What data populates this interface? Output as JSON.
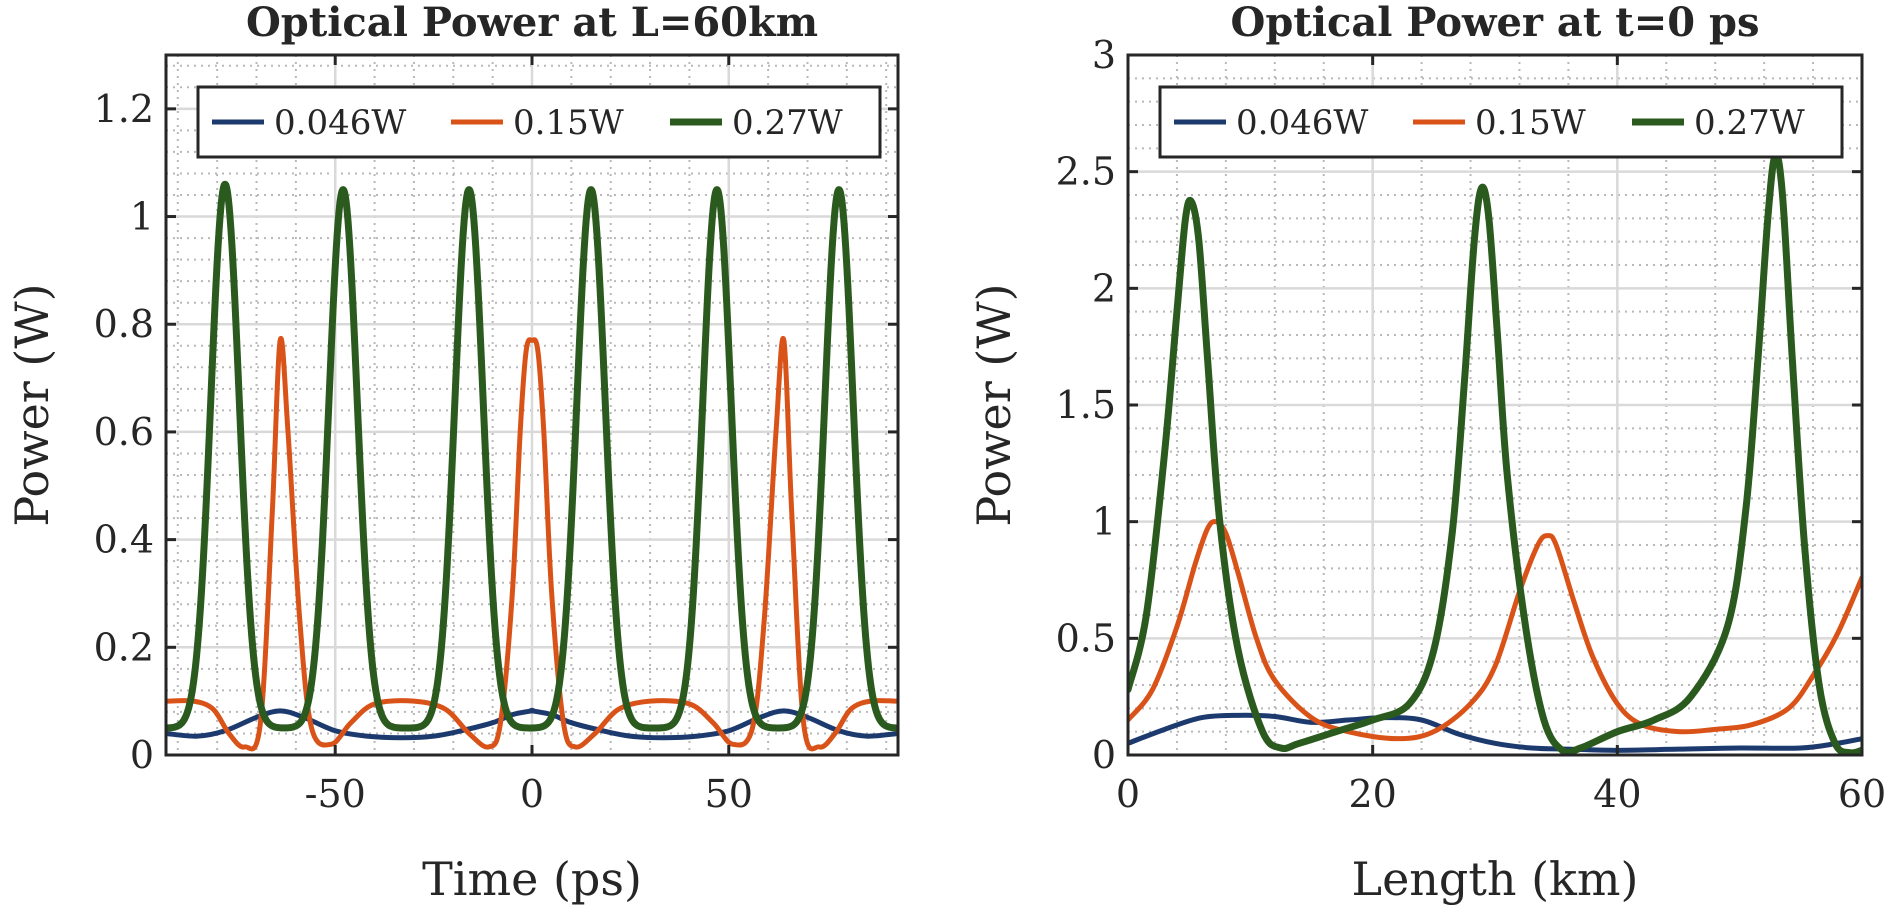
{
  "chart_data": [
    {
      "type": "line",
      "title": "Optical Power at L=60km",
      "xlabel": "Time (ps)",
      "ylabel": "Power (W)",
      "xlim": [
        -93,
        93
      ],
      "ylim": [
        0,
        1.3
      ],
      "xticks": [
        -50,
        0,
        50
      ],
      "xtick_labels": [
        "-50",
        "0",
        "50"
      ],
      "yticks": [
        0,
        0.2,
        0.4,
        0.6,
        0.8,
        1,
        1.2
      ],
      "ytick_labels": [
        "0",
        "0.2",
        "0.4",
        "0.6",
        "0.8",
        "1",
        "1.2"
      ],
      "grid": "major and minor (dotted)",
      "legend": {
        "position": "top",
        "orientation": "horizontal"
      },
      "series": [
        {
          "name": "0.046W",
          "color": "#1d3a6e",
          "x": [
            -93,
            -85,
            -78,
            -70,
            -64,
            -58,
            -50,
            -42,
            -33,
            -25,
            -18,
            -10,
            -5,
            0,
            5,
            10,
            -0.0,
            18,
            25,
            33,
            42,
            50,
            58,
            64,
            70,
            78,
            85,
            93
          ],
          "y": [
            0.04,
            0.035,
            0.045,
            0.07,
            0.082,
            0.07,
            0.045,
            0.035,
            0.032,
            0.035,
            0.045,
            0.06,
            0.075,
            0.082,
            0.075,
            0.06,
            0.082,
            0.045,
            0.035,
            0.032,
            0.035,
            0.045,
            0.07,
            0.082,
            0.07,
            0.045,
            0.035,
            0.04
          ]
        },
        {
          "name": "0.15W",
          "color": "#d95319",
          "x": [
            -93,
            -86,
            -81,
            -77,
            -73,
            -69,
            -66,
            -64,
            -62,
            -59,
            -56,
            -51,
            -46,
            -40,
            -30,
            -22,
            -16,
            -11,
            -8,
            -5,
            -3,
            -1.5,
            0,
            1.5,
            3,
            5,
            8,
            11,
            16,
            22,
            30,
            40,
            46,
            51,
            56,
            59,
            62,
            64,
            66,
            69,
            73,
            77,
            81,
            86,
            93
          ],
          "y": [
            0.1,
            0.1,
            0.085,
            0.04,
            0.015,
            0.06,
            0.45,
            0.77,
            0.6,
            0.25,
            0.05,
            0.02,
            0.06,
            0.095,
            0.1,
            0.085,
            0.04,
            0.015,
            0.06,
            0.3,
            0.6,
            0.75,
            0.77,
            0.75,
            0.6,
            0.3,
            0.06,
            0.015,
            0.04,
            0.085,
            0.1,
            0.095,
            0.06,
            0.02,
            0.05,
            0.25,
            0.6,
            0.77,
            0.45,
            0.06,
            0.015,
            0.04,
            0.085,
            0.1,
            0.1
          ]
        },
        {
          "name": "0.27W",
          "color": "#2b5a1e",
          "peaks": [
            -78,
            -48,
            -16,
            15,
            47,
            78
          ],
          "peak_values": [
            1.06,
            1.05,
            1.05,
            1.05,
            1.05,
            1.05
          ],
          "baseline": 0.05
        }
      ]
    },
    {
      "type": "line",
      "title": "Optical Power at t=0 ps",
      "xlabel": "Length (km)",
      "ylabel": "Power (W)",
      "xlim": [
        0,
        60
      ],
      "ylim": [
        0,
        3
      ],
      "xticks": [
        0,
        20,
        40,
        60
      ],
      "xtick_labels": [
        "0",
        "20",
        "40",
        "60"
      ],
      "yticks": [
        0,
        0.5,
        1,
        1.5,
        2,
        2.5,
        3
      ],
      "ytick_labels": [
        "0",
        "0.5",
        "1",
        "1.5",
        "2",
        "2.5",
        "3"
      ],
      "grid": "major and minor (dotted)",
      "legend": {
        "position": "top",
        "orientation": "horizontal"
      },
      "series": [
        {
          "name": "0.046W",
          "color": "#1d3a6e",
          "x": [
            0,
            3,
            6,
            9,
            12,
            15,
            18,
            21,
            24,
            27,
            30,
            33,
            36,
            40,
            45,
            50,
            55,
            58,
            60
          ],
          "y": [
            0.05,
            0.11,
            0.16,
            0.17,
            0.165,
            0.14,
            0.15,
            0.16,
            0.15,
            0.09,
            0.05,
            0.03,
            0.025,
            0.02,
            0.025,
            0.03,
            0.03,
            0.05,
            0.07
          ]
        },
        {
          "name": "0.15W",
          "color": "#d95319",
          "x": [
            0,
            2,
            4,
            5.5,
            6.5,
            7.2,
            8,
            9,
            10.5,
            12,
            15,
            18,
            22,
            25,
            28,
            30,
            32,
            33.5,
            34.3,
            35,
            36.5,
            38,
            40,
            42,
            45,
            48,
            51,
            54,
            56,
            58,
            60
          ],
          "y": [
            0.15,
            0.28,
            0.55,
            0.82,
            0.97,
            1.0,
            0.95,
            0.78,
            0.5,
            0.32,
            0.16,
            0.1,
            0.07,
            0.1,
            0.22,
            0.38,
            0.7,
            0.9,
            0.94,
            0.9,
            0.65,
            0.42,
            0.22,
            0.13,
            0.1,
            0.11,
            0.13,
            0.2,
            0.34,
            0.52,
            0.76
          ]
        },
        {
          "name": "0.27W",
          "color": "#2b5a1e",
          "x": [
            0,
            1.5,
            3,
            4,
            4.7,
            5.2,
            5.8,
            6.5,
            7.5,
            9,
            11,
            12.5,
            14,
            17,
            20,
            23,
            25,
            26.5,
            27.5,
            28.3,
            28.9,
            29.5,
            30.2,
            31,
            32.5,
            34,
            35.5,
            37,
            40,
            43,
            46,
            49,
            50.5,
            51.5,
            52.3,
            52.9,
            53.5,
            54.3,
            55.3,
            56.5,
            57.8,
            59,
            60
          ],
          "y": [
            0.28,
            0.6,
            1.3,
            1.9,
            2.3,
            2.37,
            2.2,
            1.7,
            1.0,
            0.45,
            0.1,
            0.03,
            0.05,
            0.1,
            0.15,
            0.22,
            0.45,
            0.95,
            1.6,
            2.2,
            2.43,
            2.3,
            1.8,
            1.2,
            0.55,
            0.15,
            0.02,
            0.03,
            0.1,
            0.15,
            0.25,
            0.55,
            1.05,
            1.7,
            2.3,
            2.57,
            2.4,
            1.7,
            0.9,
            0.3,
            0.05,
            0.01,
            0.02
          ]
        }
      ]
    }
  ]
}
